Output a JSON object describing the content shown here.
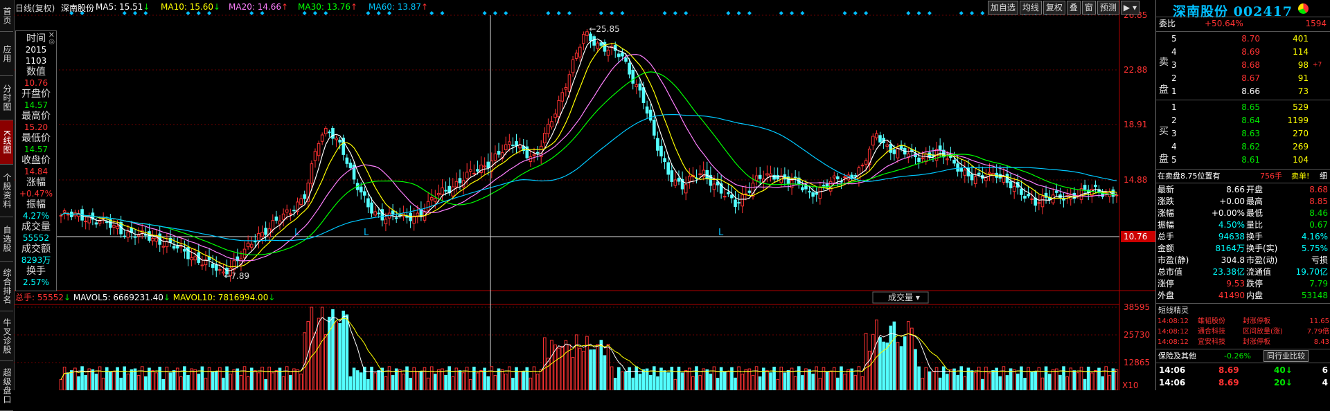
{
  "left_tabs": [
    "首页",
    "应用",
    "分时图",
    "K线图",
    "个股资料",
    "自选股",
    "综合排名",
    "牛叉诊股",
    "超级盘口"
  ],
  "topbar": {
    "period": "日线(复权)",
    "name": "深南股份",
    "ma5": "MA5: 15.51",
    "ma5_arrow": "↓",
    "ma10": "MA10: 15.60",
    "ma10_arrow": "↓",
    "ma20": "MA20: 14.66",
    "ma20_arrow": "↑",
    "ma30": "MA30: 13.76",
    "ma30_arrow": "↑",
    "ma60": "MA60: 13.87",
    "ma60_arrow": "↑",
    "buttons": [
      "加自选",
      "均线",
      "复权",
      "叠",
      "窗",
      "预测"
    ]
  },
  "colors": {
    "ma5": "#ffffff",
    "ma10": "#ffff00",
    "ma20": "#ff80ff",
    "ma30": "#00ff00",
    "ma60": "#00c8ff",
    "up": "#ff3232",
    "down": "#54ffff",
    "axis": "#b00000"
  },
  "datawin": {
    "rows": [
      {
        "label": "时间",
        "value": "2015",
        "value2": "1103",
        "color": "#ffffff"
      },
      {
        "label": "数值",
        "value": "10.76",
        "color": "#ff3232"
      },
      {
        "label": "开盘价",
        "value": "14.57",
        "color": "#00e600"
      },
      {
        "label": "最高价",
        "value": "15.20",
        "color": "#ff3232"
      },
      {
        "label": "最低价",
        "value": "14.57",
        "color": "#00e600"
      },
      {
        "label": "收盘价",
        "value": "14.84",
        "color": "#ff3232"
      },
      {
        "label": "涨幅",
        "value": "+0.47%",
        "color": "#ff3232"
      },
      {
        "label": "振幅",
        "value": "4.27%",
        "color": "#00ffff"
      },
      {
        "label": "成交量",
        "value": "55552",
        "color": "#00ffff"
      },
      {
        "label": "成交额",
        "value": "8293万",
        "color": "#00ffff"
      },
      {
        "label": "换手",
        "value": "2.57%",
        "color": "#00ffff"
      }
    ]
  },
  "price_axis": {
    "labels": [
      "26.85",
      "22.88",
      "18.91",
      "14.88",
      "10.76"
    ],
    "highlight": "10.76"
  },
  "annotations": {
    "high": "25.85",
    "low": "7.89",
    "marker": "L"
  },
  "volume": {
    "header_total": "总手: 55552",
    "header_total_arrow": "↓",
    "mavol5": "MAVOL5: 6669231.40",
    "mavol5_arrow": "↓",
    "mavol10": "MAVOL10: 7816994.00",
    "mavol10_arrow": "↓",
    "selector": "成交量",
    "axis_labels": [
      "38595",
      "25730",
      "12865"
    ],
    "unit": "X10"
  },
  "chart_data": {
    "type": "candlestick",
    "ylim": [
      7.89,
      26.85
    ],
    "note_high": 25.85,
    "note_low": 7.89
  },
  "quote": {
    "name": "深南股份",
    "code": "002417",
    "weibi_label": "委比",
    "weibi": "+50.64%",
    "weicha": "1594",
    "sell_label": [
      "卖",
      "盘"
    ],
    "buy_label": [
      "买",
      "盘"
    ],
    "asks": [
      {
        "n": "5",
        "p": "8.70",
        "v": "401"
      },
      {
        "n": "4",
        "p": "8.69",
        "v": "114"
      },
      {
        "n": "3",
        "p": "8.68",
        "v": "98",
        "extra": "+7"
      },
      {
        "n": "2",
        "p": "8.67",
        "v": "91"
      },
      {
        "n": "1",
        "p": "8.66",
        "v": "73"
      }
    ],
    "bids": [
      {
        "n": "1",
        "p": "8.65",
        "v": "529"
      },
      {
        "n": "2",
        "p": "8.64",
        "v": "1199"
      },
      {
        "n": "3",
        "p": "8.63",
        "v": "270"
      },
      {
        "n": "4",
        "p": "8.62",
        "v": "269"
      },
      {
        "n": "5",
        "p": "8.61",
        "v": "104"
      }
    ],
    "notice_left": "在卖盘8.75位置有",
    "notice_mid": "756手",
    "notice_right": "卖单!",
    "notice_btn": "细",
    "stats": [
      {
        "l1": "最新",
        "v1": "8.66",
        "c1": "#ffffff",
        "l2": "开盘",
        "v2": "8.68",
        "c2": "#ff3232"
      },
      {
        "l1": "涨跌",
        "v1": "+0.00",
        "c1": "#ffffff",
        "l2": "最高",
        "v2": "8.85",
        "c2": "#ff3232"
      },
      {
        "l1": "涨幅",
        "v1": "+0.00%",
        "c1": "#ffffff",
        "l2": "最低",
        "v2": "8.46",
        "c2": "#00e600"
      },
      {
        "l1": "振幅",
        "v1": "4.50%",
        "c1": "#00ffff",
        "l2": "量比",
        "v2": "0.67",
        "c2": "#00e600"
      },
      {
        "l1": "总手",
        "v1": "94638",
        "c1": "#00ffff",
        "l2": "换手",
        "v2": "4.16%",
        "c2": "#00ffff"
      },
      {
        "l1": "金额",
        "v1": "8164万",
        "c1": "#00ffff",
        "l2": "换手(实)",
        "v2": "5.75%",
        "c2": "#00ffff"
      },
      {
        "l1": "市盈(静)",
        "v1": "304.8",
        "c1": "#ffffff",
        "l2": "市盈(动)",
        "v2": "亏损",
        "c2": "#ffffff"
      },
      {
        "l1": "总市值",
        "v1": "23.38亿",
        "c1": "#00ffff",
        "l2": "流通值",
        "v2": "19.70亿",
        "c2": "#00ffff"
      },
      {
        "l1": "涨停",
        "v1": "9.53",
        "c1": "#ff3232",
        "l2": "跌停",
        "v2": "7.79",
        "c2": "#00e600"
      },
      {
        "l1": "外盘",
        "v1": "41490",
        "c1": "#ff3232",
        "l2": "内盘",
        "v2": "53148",
        "c2": "#00e600"
      }
    ],
    "short_title": "短线精灵",
    "short_list": [
      {
        "t": "14:08:12",
        "n": "雄韬股份",
        "e": "封涨停板",
        "v": "11.65"
      },
      {
        "t": "14:08:12",
        "n": "通合科技",
        "e": "区间放量(涨)",
        "v": "7.79倍"
      },
      {
        "t": "14:08:12",
        "n": "宜安科技",
        "e": "封涨停板",
        "v": "8.43"
      }
    ],
    "sector": "保险及其他",
    "sector_pct": "-0.26%",
    "sector_btn": "同行业比较",
    "ticks": [
      {
        "t": "14:06",
        "p": "8.69",
        "v": "40",
        "arrow": "↓",
        "x": "6"
      },
      {
        "t": "14:06",
        "p": "8.69",
        "v": "20",
        "arrow": "↓",
        "x": "4"
      }
    ]
  }
}
